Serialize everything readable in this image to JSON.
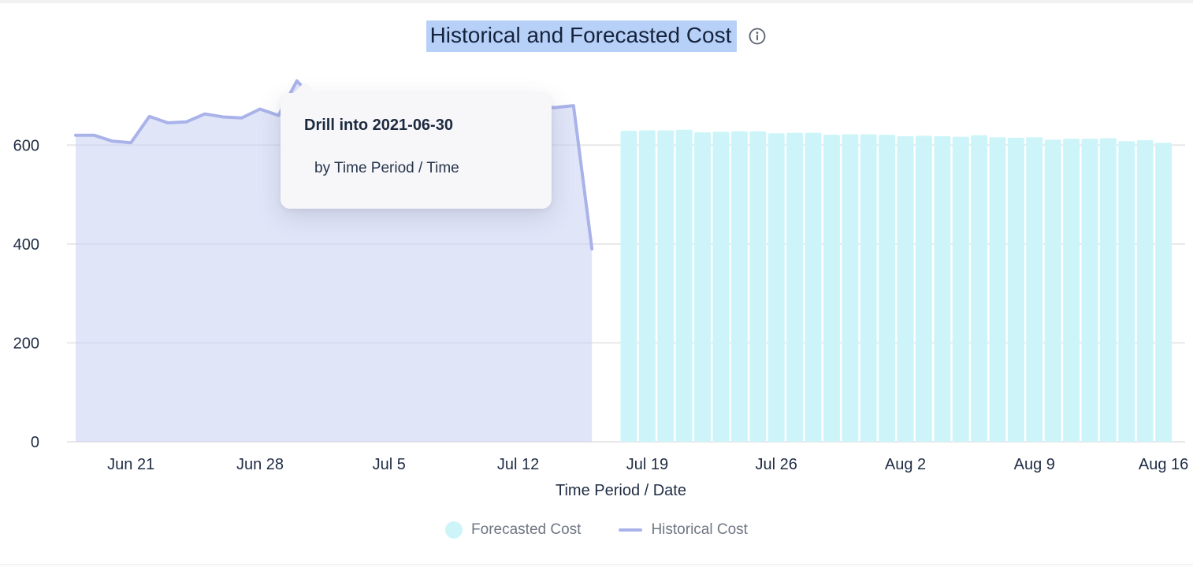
{
  "header": {
    "title": "Historical and Forecasted Cost"
  },
  "tooltip": {
    "title": "Drill into 2021-06-30",
    "subtitle": "by Time Period / Time"
  },
  "legend": {
    "items": [
      {
        "label": "Forecasted Cost",
        "swatch": "circle",
        "color": "#cdf5f9"
      },
      {
        "label": "Historical Cost",
        "swatch": "line",
        "color": "#a9b3ea"
      }
    ]
  },
  "colors": {
    "bar_fill": "#cdf5f9",
    "line_stroke": "#a9b3ea",
    "area_fill": "rgba(201,207,243,0.55)",
    "gridline": "#e8e8ea",
    "tick_text": "#1f2c44",
    "legend_text": "#6f7683",
    "title_text": "#15233c",
    "title_selection": "#b7d0f8",
    "tooltip_bg": "#f7f7f9"
  },
  "chart_data": {
    "type": "mixed",
    "title": "Historical and Forecasted Cost",
    "xlabel": "Time Period / Date",
    "ylabel": "",
    "y_ticks": [
      0,
      200,
      400,
      600
    ],
    "ylim": [
      0,
      745
    ],
    "grid": "horizontal",
    "legend_position": "bottom",
    "x_tick_labels": [
      "Jun 21",
      "Jun 28",
      "Jul 5",
      "Jul 12",
      "Jul 19",
      "Jul 26",
      "Aug 2",
      "Aug 9",
      "Aug 16"
    ],
    "x_tick_dates": [
      "2021-06-21",
      "2021-06-28",
      "2021-07-05",
      "2021-07-12",
      "2021-07-19",
      "2021-07-26",
      "2021-08-02",
      "2021-08-09",
      "2021-08-16"
    ],
    "series": [
      {
        "name": "Historical Cost",
        "type": "area-line",
        "line_color": "#a9b3ea",
        "fill_color": "rgba(201,207,243,0.55)",
        "dates": [
          "2021-06-18",
          "2021-06-19",
          "2021-06-20",
          "2021-06-21",
          "2021-06-22",
          "2021-06-23",
          "2021-06-24",
          "2021-06-25",
          "2021-06-26",
          "2021-06-27",
          "2021-06-28",
          "2021-06-29",
          "2021-06-30",
          "2021-07-01",
          "2021-07-02",
          "2021-07-03",
          "2021-07-04",
          "2021-07-05",
          "2021-07-06",
          "2021-07-07",
          "2021-07-08",
          "2021-07-09",
          "2021-07-10",
          "2021-07-11",
          "2021-07-12",
          "2021-07-13",
          "2021-07-14",
          "2021-07-15",
          "2021-07-16"
        ],
        "values": [
          620,
          620,
          608,
          605,
          658,
          645,
          647,
          663,
          657,
          655,
          673,
          660,
          730,
          690,
          682,
          676,
          672,
          670,
          668,
          670,
          672,
          669,
          671,
          673,
          675,
          676,
          676,
          680,
          390
        ]
      },
      {
        "name": "Forecasted Cost",
        "type": "bar",
        "color": "#cdf5f9",
        "dates": [
          "2021-07-18",
          "2021-07-19",
          "2021-07-20",
          "2021-07-21",
          "2021-07-22",
          "2021-07-23",
          "2021-07-24",
          "2021-07-25",
          "2021-07-26",
          "2021-07-27",
          "2021-07-28",
          "2021-07-29",
          "2021-07-30",
          "2021-07-31",
          "2021-08-01",
          "2021-08-02",
          "2021-08-03",
          "2021-08-04",
          "2021-08-05",
          "2021-08-06",
          "2021-08-07",
          "2021-08-08",
          "2021-08-09",
          "2021-08-10",
          "2021-08-11",
          "2021-08-12",
          "2021-08-13",
          "2021-08-14",
          "2021-08-15",
          "2021-08-16"
        ],
        "values": [
          629,
          630,
          630,
          631,
          626,
          627,
          628,
          628,
          624,
          625,
          625,
          621,
          622,
          622,
          621,
          618,
          619,
          618,
          617,
          620,
          616,
          615,
          616,
          611,
          613,
          613,
          614,
          608,
          610,
          605
        ]
      }
    ]
  }
}
